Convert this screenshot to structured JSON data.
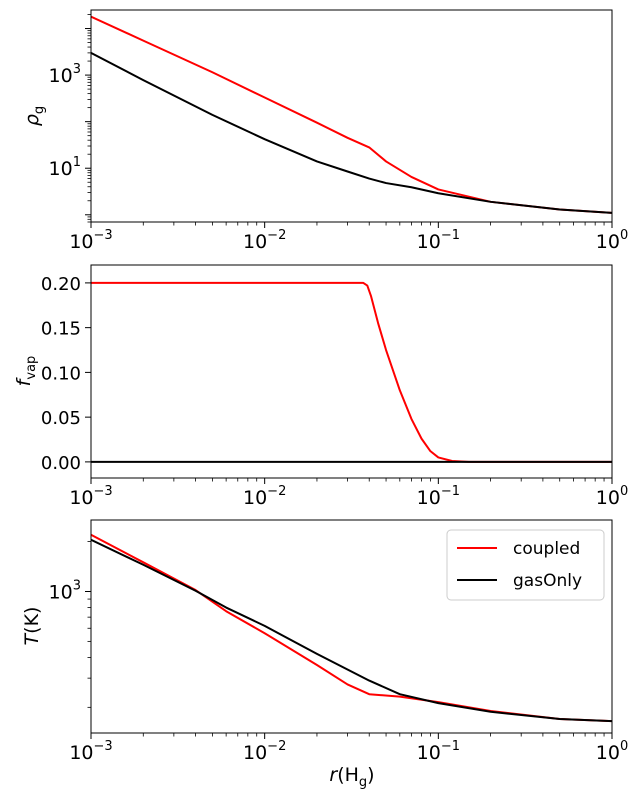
{
  "legend": {
    "entries": [
      {
        "label": "coupled",
        "color": "#ff0000"
      },
      {
        "label": "gasOnly",
        "color": "#000000"
      }
    ]
  },
  "xaxis": {
    "label_main": "r",
    "label_paren": "(H",
    "label_sub": "g",
    "label_close": ")",
    "ticks": [
      {
        "value": 0.001,
        "base": "10",
        "exp": "−3"
      },
      {
        "value": 0.01,
        "base": "10",
        "exp": "−2"
      },
      {
        "value": 0.1,
        "base": "10",
        "exp": "−1"
      },
      {
        "value": 1,
        "base": "10",
        "exp": "0"
      }
    ]
  },
  "chart_data": [
    {
      "type": "line",
      "xscale": "log",
      "yscale": "log",
      "xlim": [
        0.001,
        1
      ],
      "ylim": [
        0.7,
        25000
      ],
      "ylabel_main": "ρ",
      "ylabel_sub": "g",
      "yticks": [
        {
          "value": 10,
          "base": "10",
          "exp": "1"
        },
        {
          "value": 1000,
          "base": "10",
          "exp": "3"
        }
      ],
      "series": [
        {
          "name": "coupled",
          "color": "#ff0000",
          "x": [
            0.001,
            0.002,
            0.005,
            0.01,
            0.02,
            0.03,
            0.04,
            0.05,
            0.07,
            0.1,
            0.2,
            0.5,
            1.0
          ],
          "y": [
            18000,
            5500,
            1150,
            330,
            95,
            45,
            28,
            14,
            6.5,
            3.5,
            1.9,
            1.3,
            1.1
          ]
        },
        {
          "name": "gasOnly",
          "color": "#000000",
          "x": [
            0.001,
            0.002,
            0.005,
            0.01,
            0.02,
            0.03,
            0.04,
            0.05,
            0.07,
            0.1,
            0.2,
            0.5,
            1.0
          ],
          "y": [
            3000,
            780,
            140,
            42,
            14,
            8.5,
            6,
            4.8,
            3.9,
            2.9,
            1.9,
            1.3,
            1.1
          ]
        }
      ]
    },
    {
      "type": "line",
      "xscale": "log",
      "yscale": "linear",
      "xlim": [
        0.001,
        1
      ],
      "ylim": [
        -0.018,
        0.22
      ],
      "ylabel_main": "f",
      "ylabel_sub": "vap",
      "yticks": [
        {
          "value": 0,
          "label": "0.00"
        },
        {
          "value": 0.05,
          "label": "0.05"
        },
        {
          "value": 0.1,
          "label": "0.10"
        },
        {
          "value": 0.15,
          "label": "0.15"
        },
        {
          "value": 0.2,
          "label": "0.20"
        }
      ],
      "series": [
        {
          "name": "coupled",
          "color": "#ff0000",
          "x": [
            0.001,
            0.01,
            0.03,
            0.037,
            0.039,
            0.041,
            0.045,
            0.05,
            0.06,
            0.07,
            0.08,
            0.09,
            0.1,
            0.12,
            0.15,
            0.2,
            1.0
          ],
          "y": [
            0.2,
            0.2,
            0.2,
            0.2,
            0.197,
            0.185,
            0.155,
            0.125,
            0.08,
            0.048,
            0.026,
            0.012,
            0.005,
            0.001,
            0.0,
            0.0,
            0.0
          ]
        },
        {
          "name": "gasOnly",
          "color": "#000000",
          "x": [
            0.001,
            1.0
          ],
          "y": [
            0.0,
            0.0
          ]
        }
      ]
    },
    {
      "type": "line",
      "xscale": "log",
      "yscale": "log",
      "xlim": [
        0.001,
        1
      ],
      "ylim": [
        140,
        2700
      ],
      "ylabel_main": "T",
      "ylabel_paren": "(K)",
      "yticks": [
        {
          "value": 1000,
          "base": "10",
          "exp": "3"
        }
      ],
      "series": [
        {
          "name": "coupled",
          "color": "#ff0000",
          "x": [
            0.001,
            0.002,
            0.004,
            0.006,
            0.01,
            0.02,
            0.03,
            0.04,
            0.06,
            0.1,
            0.2,
            0.5,
            1.0
          ],
          "y": [
            2200,
            1500,
            1020,
            760,
            560,
            360,
            275,
            240,
            232,
            215,
            190,
            170,
            165
          ]
        },
        {
          "name": "gasOnly",
          "color": "#000000",
          "x": [
            0.001,
            0.002,
            0.004,
            0.006,
            0.01,
            0.02,
            0.04,
            0.06,
            0.1,
            0.2,
            0.5,
            1.0
          ],
          "y": [
            2050,
            1450,
            1010,
            800,
            620,
            420,
            290,
            240,
            212,
            188,
            170,
            165
          ]
        }
      ]
    }
  ]
}
